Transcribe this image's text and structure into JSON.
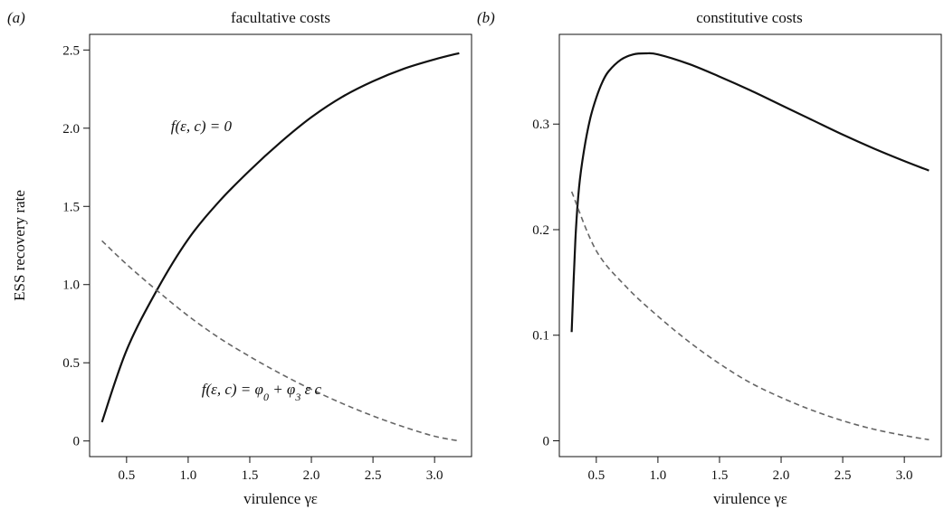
{
  "chart_data": [
    {
      "type": "line",
      "panel_label": "(a)",
      "title": "facultative costs",
      "xlabel": "virulence γε",
      "ylabel": "ESS recovery rate",
      "xlim": [
        0.2,
        3.3
      ],
      "ylim": [
        -0.1,
        2.6
      ],
      "xticks": [
        "0.5",
        "1.0",
        "1.5",
        "2.0",
        "2.5",
        "3.0"
      ],
      "yticks": [
        "0",
        "0.5",
        "1.0",
        "1.5",
        "2.0",
        "2.5"
      ],
      "series": [
        {
          "name": "f(ε, c) = 0",
          "style": "solid",
          "color": "#111111",
          "x": [
            0.3,
            0.5,
            0.75,
            1.0,
            1.25,
            1.5,
            1.75,
            2.0,
            2.25,
            2.5,
            2.75,
            3.0,
            3.2
          ],
          "y": [
            0.12,
            0.58,
            0.97,
            1.29,
            1.53,
            1.73,
            1.91,
            2.07,
            2.2,
            2.3,
            2.38,
            2.44,
            2.48
          ]
        },
        {
          "name": "f(ε, c) = φ0 + φ3 ε c",
          "style": "dashed",
          "color": "#666666",
          "x": [
            0.3,
            0.5,
            0.75,
            1.0,
            1.25,
            1.5,
            1.75,
            2.0,
            2.25,
            2.5,
            2.75,
            3.0,
            3.2
          ],
          "y": [
            1.28,
            1.13,
            0.96,
            0.8,
            0.66,
            0.54,
            0.43,
            0.33,
            0.24,
            0.16,
            0.09,
            0.03,
            0.0
          ]
        }
      ],
      "annotations": [
        {
          "text": "f(ε, c) = 0",
          "x": 1.3,
          "y": 1.98,
          "color": "#111111"
        },
        {
          "text": "f(ε, c) = φ0 + φ3 ε c",
          "x": 1.55,
          "y": 0.3,
          "color": "#666666"
        }
      ]
    },
    {
      "type": "line",
      "panel_label": "(b)",
      "title": "constitutive costs",
      "xlabel": "virulence γε",
      "ylabel": "",
      "xlim": [
        0.2,
        3.3
      ],
      "ylim": [
        -0.015,
        0.385
      ],
      "xticks": [
        "0.5",
        "1.0",
        "1.5",
        "2.0",
        "2.5",
        "3.0"
      ],
      "yticks": [
        "0",
        "0.1",
        "0.2",
        "0.3"
      ],
      "series": [
        {
          "name": "",
          "style": "solid",
          "color": "#111111",
          "x": [
            0.3,
            0.33,
            0.36,
            0.4,
            0.45,
            0.5,
            0.55,
            0.6,
            0.7,
            0.8,
            0.9,
            1.0,
            1.25,
            1.5,
            1.75,
            2.0,
            2.25,
            2.5,
            2.75,
            3.0,
            3.2
          ],
          "y": [
            0.103,
            0.19,
            0.24,
            0.275,
            0.305,
            0.325,
            0.34,
            0.35,
            0.361,
            0.366,
            0.367,
            0.366,
            0.357,
            0.345,
            0.332,
            0.318,
            0.304,
            0.29,
            0.277,
            0.265,
            0.256
          ]
        },
        {
          "name": "",
          "style": "dashed",
          "color": "#666666",
          "x": [
            0.3,
            0.5,
            0.75,
            1.0,
            1.25,
            1.5,
            1.75,
            2.0,
            2.25,
            2.5,
            2.75,
            3.0,
            3.2
          ],
          "y": [
            0.236,
            0.18,
            0.145,
            0.118,
            0.094,
            0.073,
            0.055,
            0.041,
            0.029,
            0.019,
            0.011,
            0.005,
            0.001
          ]
        }
      ],
      "annotations": []
    }
  ]
}
